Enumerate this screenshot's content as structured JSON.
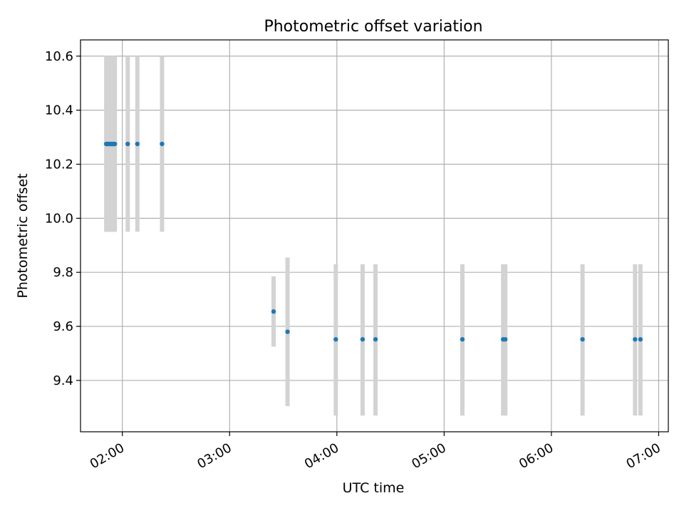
{
  "chart_data": {
    "type": "scatter",
    "title": "Photometric offset variation",
    "xlabel": "UTC time",
    "ylabel": "Photometric offset",
    "x_unit": "UTC hours",
    "xlim": [
      1.61,
      7.09
    ],
    "ylim": [
      9.21,
      10.66
    ],
    "x_ticks": [
      {
        "value": 2,
        "label": "02:00"
      },
      {
        "value": 3,
        "label": "03:00"
      },
      {
        "value": 4,
        "label": "04:00"
      },
      {
        "value": 5,
        "label": "05:00"
      },
      {
        "value": 6,
        "label": "06:00"
      },
      {
        "value": 7,
        "label": "07:00"
      }
    ],
    "y_ticks": [
      {
        "value": 9.4,
        "label": "9.4"
      },
      {
        "value": 9.6,
        "label": "9.6"
      },
      {
        "value": 9.8,
        "label": "9.8"
      },
      {
        "value": 10.0,
        "label": "10.0"
      },
      {
        "value": 10.2,
        "label": "10.2"
      },
      {
        "value": 10.4,
        "label": "10.4"
      },
      {
        "value": 10.6,
        "label": "10.6"
      }
    ],
    "grid": true,
    "colors": {
      "point": "#1f77b4",
      "errorbar": "#d3d3d3",
      "grid": "#b0b0b0",
      "axis": "#000000"
    },
    "points": [
      {
        "x": 1.85,
        "y": 10.275,
        "yerr_low": 9.95,
        "yerr_high": 10.6
      },
      {
        "x": 1.86,
        "y": 10.275,
        "yerr_low": 9.95,
        "yerr_high": 10.6
      },
      {
        "x": 1.87,
        "y": 10.275,
        "yerr_low": 9.95,
        "yerr_high": 10.6
      },
      {
        "x": 1.88,
        "y": 10.275,
        "yerr_low": 9.95,
        "yerr_high": 10.6
      },
      {
        "x": 1.89,
        "y": 10.275,
        "yerr_low": 9.95,
        "yerr_high": 10.6
      },
      {
        "x": 1.9,
        "y": 10.275,
        "yerr_low": 9.95,
        "yerr_high": 10.6
      },
      {
        "x": 1.91,
        "y": 10.275,
        "yerr_low": 9.95,
        "yerr_high": 10.6
      },
      {
        "x": 1.92,
        "y": 10.275,
        "yerr_low": 9.95,
        "yerr_high": 10.6
      },
      {
        "x": 1.93,
        "y": 10.275,
        "yerr_low": 9.95,
        "yerr_high": 10.6
      },
      {
        "x": 2.05,
        "y": 10.275,
        "yerr_low": 9.95,
        "yerr_high": 10.6
      },
      {
        "x": 2.14,
        "y": 10.275,
        "yerr_low": 9.95,
        "yerr_high": 10.6
      },
      {
        "x": 2.37,
        "y": 10.275,
        "yerr_low": 9.95,
        "yerr_high": 10.6
      },
      {
        "x": 3.41,
        "y": 9.655,
        "yerr_low": 9.525,
        "yerr_high": 9.785
      },
      {
        "x": 3.54,
        "y": 9.58,
        "yerr_low": 9.305,
        "yerr_high": 9.855
      },
      {
        "x": 3.99,
        "y": 9.552,
        "yerr_low": 9.27,
        "yerr_high": 9.83
      },
      {
        "x": 4.24,
        "y": 9.552,
        "yerr_low": 9.27,
        "yerr_high": 9.83
      },
      {
        "x": 4.36,
        "y": 9.552,
        "yerr_low": 9.27,
        "yerr_high": 9.83
      },
      {
        "x": 5.17,
        "y": 9.552,
        "yerr_low": 9.27,
        "yerr_high": 9.83
      },
      {
        "x": 5.55,
        "y": 9.552,
        "yerr_low": 9.27,
        "yerr_high": 9.83
      },
      {
        "x": 5.57,
        "y": 9.552,
        "yerr_low": 9.27,
        "yerr_high": 9.83
      },
      {
        "x": 6.29,
        "y": 9.552,
        "yerr_low": 9.27,
        "yerr_high": 9.83
      },
      {
        "x": 6.78,
        "y": 9.552,
        "yerr_low": 9.27,
        "yerr_high": 9.83
      },
      {
        "x": 6.83,
        "y": 9.552,
        "yerr_low": 9.27,
        "yerr_high": 9.83
      }
    ]
  }
}
